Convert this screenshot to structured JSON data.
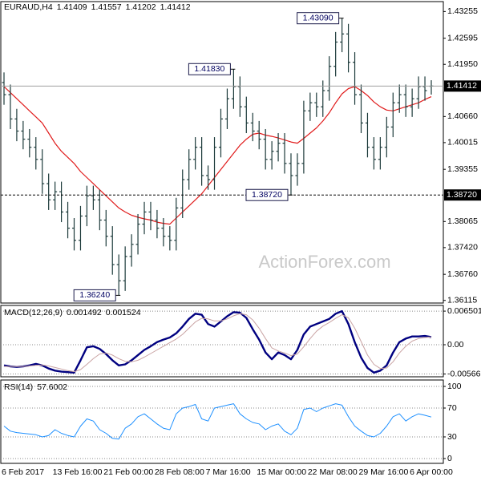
{
  "chart_data": [
    {
      "type": "ohlc",
      "title": "EURAUD,H4",
      "color": "#1c3a3a",
      "grid": false,
      "categories": [
        "6 Feb 2017",
        null,
        null,
        null,
        null,
        null,
        null,
        null,
        "13 Feb 16:00",
        null,
        null,
        null,
        null,
        null,
        null,
        null,
        "21 Feb 00:00",
        null,
        null,
        null,
        null,
        null,
        null,
        null,
        "28 Feb 08:00",
        null,
        null,
        null,
        null,
        null,
        null,
        null,
        "7 Mar 16:00",
        null,
        null,
        null,
        null,
        null,
        null,
        null,
        "15 Mar 00:00",
        null,
        null,
        null,
        null,
        null,
        null,
        null,
        "22 Mar 08:00",
        null,
        null,
        null,
        null,
        null,
        null,
        null,
        "29 Mar 16:00",
        null,
        null,
        null,
        null,
        null,
        null,
        null,
        "6 Apr 00:00",
        null,
        null,
        null
      ],
      "open": [
        1.415,
        1.412,
        1.406,
        1.403,
        1.401,
        1.399,
        1.396,
        1.39,
        1.386,
        1.388,
        1.383,
        1.379,
        1.376,
        1.382,
        1.387,
        1.386,
        1.381,
        1.377,
        1.37,
        1.366,
        1.372,
        1.375,
        1.38,
        1.383,
        1.381,
        1.379,
        1.377,
        1.376,
        1.384,
        1.391,
        1.396,
        1.399,
        1.392,
        1.391,
        1.399,
        1.406,
        1.411,
        1.414,
        1.409,
        1.405,
        1.403,
        1.401,
        1.396,
        1.398,
        1.4,
        1.395,
        1.392,
        1.395,
        1.408,
        1.41,
        1.409,
        1.413,
        1.419,
        1.425,
        1.427,
        1.42,
        1.412,
        1.405,
        1.399,
        1.396,
        1.399,
        1.404,
        1.41,
        1.412,
        1.409,
        1.411,
        1.414,
        1.41409
      ],
      "high": [
        1.4175,
        1.4145,
        1.4085,
        1.4055,
        1.4035,
        1.4015,
        1.3985,
        1.3925,
        1.3905,
        1.3905,
        1.3855,
        1.3815,
        1.3845,
        1.3895,
        1.3895,
        1.3885,
        1.3835,
        1.3795,
        1.3725,
        1.3745,
        1.3775,
        1.3825,
        1.3855,
        1.3855,
        1.3835,
        1.3815,
        1.3795,
        1.3865,
        1.3935,
        1.3985,
        1.4015,
        1.4015,
        1.3945,
        1.4015,
        1.4085,
        1.4135,
        1.4183,
        1.4165,
        1.4115,
        1.4075,
        1.4055,
        1.4035,
        1.4005,
        1.4025,
        1.4025,
        1.3975,
        1.3975,
        1.4105,
        1.4125,
        1.4125,
        1.4155,
        1.4215,
        1.4275,
        1.4309,
        1.4295,
        1.4225,
        1.4145,
        1.4075,
        1.4015,
        1.4015,
        1.4065,
        1.4125,
        1.4145,
        1.4145,
        1.4135,
        1.4165,
        1.4165,
        1.41557
      ],
      "low": [
        1.4095,
        1.4035,
        1.4005,
        1.3985,
        1.3965,
        1.3935,
        1.3875,
        1.3835,
        1.3835,
        1.3805,
        1.3765,
        1.3735,
        1.3735,
        1.3795,
        1.3835,
        1.3785,
        1.3745,
        1.3675,
        1.3624,
        1.3635,
        1.3695,
        1.3725,
        1.3775,
        1.3785,
        1.3765,
        1.3745,
        1.3735,
        1.3735,
        1.3815,
        1.3885,
        1.3935,
        1.3895,
        1.3885,
        1.3885,
        1.3965,
        1.4035,
        1.4085,
        1.4065,
        1.4025,
        1.4005,
        1.3985,
        1.3935,
        1.3935,
        1.3955,
        1.3925,
        1.3872,
        1.3895,
        1.3925,
        1.4055,
        1.4065,
        1.4065,
        1.4105,
        1.4165,
        1.4225,
        1.4175,
        1.4095,
        1.4025,
        1.3965,
        1.3935,
        1.3935,
        1.3965,
        1.4015,
        1.4075,
        1.4065,
        1.4065,
        1.4085,
        1.4105,
        1.41202
      ],
      "close": [
        1.412,
        1.406,
        1.403,
        1.401,
        1.399,
        1.396,
        1.39,
        1.386,
        1.388,
        1.383,
        1.379,
        1.376,
        1.382,
        1.387,
        1.386,
        1.381,
        1.377,
        1.37,
        1.366,
        1.372,
        1.375,
        1.38,
        1.383,
        1.381,
        1.379,
        1.377,
        1.376,
        1.384,
        1.391,
        1.396,
        1.399,
        1.392,
        1.391,
        1.399,
        1.406,
        1.411,
        1.414,
        1.409,
        1.405,
        1.403,
        1.401,
        1.396,
        1.398,
        1.4,
        1.395,
        1.392,
        1.395,
        1.408,
        1.41,
        1.409,
        1.413,
        1.419,
        1.425,
        1.427,
        1.42,
        1.412,
        1.405,
        1.399,
        1.396,
        1.399,
        1.404,
        1.41,
        1.412,
        1.409,
        1.411,
        1.414,
        1.413,
        1.41412
      ],
      "series": [
        {
          "color": "#e01b1b",
          "values": [
            1.414,
            1.4125,
            1.411,
            1.4095,
            1.408,
            1.4065,
            1.405,
            1.4025,
            1.4,
            1.398,
            1.3965,
            1.395,
            1.393,
            1.3915,
            1.39,
            1.3885,
            1.387,
            1.3855,
            1.384,
            1.383,
            1.3822,
            1.3817,
            1.3813,
            1.381,
            1.3805,
            1.3802,
            1.38,
            1.3815,
            1.383,
            1.3845,
            1.386,
            1.3875,
            1.3895,
            1.3915,
            1.3935,
            1.3955,
            1.3975,
            1.3995,
            1.401,
            1.4022,
            1.4025,
            1.402,
            1.4017,
            1.4013,
            1.4008,
            1.4003,
            1.4,
            1.4012,
            1.4025,
            1.4038,
            1.4055,
            1.4075,
            1.41,
            1.4122,
            1.4135,
            1.414,
            1.413,
            1.4118,
            1.4102,
            1.409,
            1.4082,
            1.408,
            1.4085,
            1.409,
            1.4095,
            1.41,
            1.4108,
            1.4115
          ]
        }
      ],
      "ylim": [
        1.3605,
        1.435
      ],
      "yticks": [
        1.43255,
        1.42595,
        {
          "value": 1.4195,
          "label": "1.41950"
        },
        {
          "value": 1.4066,
          "label": "1.40660"
        },
        1.40015,
        1.39355,
        1.38065,
        {
          "value": 1.3742,
          "label": "1.37420"
        },
        {
          "value": 1.3676,
          "label": "1.36760"
        },
        1.36115
      ],
      "annotations": [
        {
          "value": 1.4309,
          "label": "1.43090"
        },
        {
          "value": 1.4183,
          "label": "1.41830"
        },
        {
          "value": 1.3872,
          "label": "1.38720",
          "level": true
        },
        {
          "value": 1.3624,
          "label": "1.36240"
        }
      ]
    },
    {
      "type": "line",
      "title": "MACD(12,26,9)",
      "grid": true,
      "series": [
        {
          "color": "#000080",
          "width": 2.4,
          "values": [
            -0.004,
            -0.0042,
            -0.0043,
            -0.0042,
            -0.004,
            -0.0037,
            -0.004,
            -0.0046,
            -0.005,
            -0.0052,
            -0.0053,
            -0.0054,
            -0.003,
            -0.0005,
            -0.0003,
            -0.0008,
            -0.0018,
            -0.003,
            -0.004,
            -0.0038,
            -0.003,
            -0.002,
            -0.001,
            -0.0003,
            0.0005,
            0.001,
            0.0014,
            0.0022,
            0.0035,
            0.005,
            0.006,
            0.0058,
            0.004,
            0.0035,
            0.0045,
            0.0055,
            0.0063,
            0.0062,
            0.0052,
            0.003,
            0.001,
            -0.0015,
            -0.0028,
            -0.0015,
            -0.002,
            -0.0028,
            -0.001,
            0.002,
            0.0035,
            0.004,
            0.0045,
            0.005,
            0.006,
            0.0065,
            0.004,
            0.0005,
            -0.0025,
            -0.0045,
            -0.0054,
            -0.005,
            -0.004,
            -0.0015,
            0.0005,
            0.0012,
            0.0016,
            0.0016,
            0.0017,
            0.001492
          ]
        },
        {
          "color": "#c9a3a3",
          "width": 1,
          "values": [
            -0.0042,
            -0.0042,
            -0.0042,
            -0.0042,
            -0.0041,
            -0.004,
            -0.0039,
            -0.0041,
            -0.0044,
            -0.0047,
            -0.005,
            -0.0052,
            -0.0048,
            -0.0038,
            -0.0027,
            -0.0018,
            -0.0016,
            -0.002,
            -0.0027,
            -0.0032,
            -0.0033,
            -0.003,
            -0.0024,
            -0.0017,
            -0.001,
            -0.0003,
            0.0004,
            0.0011,
            0.002,
            0.0032,
            0.0044,
            0.0051,
            0.005,
            0.0046,
            0.0046,
            0.005,
            0.0056,
            0.006,
            0.0058,
            0.0048,
            0.0032,
            0.0012,
            -0.0006,
            -0.0012,
            -0.0016,
            -0.0021,
            -0.0018,
            -0.0004,
            0.0012,
            0.0026,
            0.0036,
            0.0043,
            0.0051,
            0.0058,
            0.0052,
            0.0032,
            0.0006,
            -0.002,
            -0.0038,
            -0.0046,
            -0.0045,
            -0.0033,
            -0.0016,
            -0.0003,
            0.0007,
            0.0012,
            0.0014,
            0.001524
          ]
        }
      ],
      "ylim": [
        -0.0062,
        0.0076
      ],
      "yticks": [
        0.006501,
        {
          "value": 0,
          "label": "0.00"
        },
        -0.005666
      ]
    },
    {
      "type": "line",
      "title": "RSI(14)",
      "grid": true,
      "series": [
        {
          "color": "#1e90ff",
          "width": 1,
          "values": [
            45,
            38,
            36,
            35,
            34,
            33,
            30,
            32,
            40,
            35,
            32,
            30,
            45,
            55,
            52,
            40,
            35,
            28,
            27,
            42,
            48,
            58,
            62,
            55,
            48,
            42,
            40,
            62,
            70,
            72,
            75,
            55,
            52,
            70,
            72,
            74,
            76,
            62,
            55,
            50,
            48,
            40,
            45,
            48,
            38,
            33,
            42,
            68,
            70,
            65,
            70,
            73,
            76,
            74,
            58,
            45,
            38,
            32,
            30,
            35,
            45,
            58,
            62,
            52,
            58,
            62,
            60,
            57.6002
          ]
        }
      ],
      "ylim": [
        -6.7,
        108.9
      ],
      "yticks": [
        100,
        70,
        30,
        0
      ]
    }
  ],
  "watermark": "ActionForex.com"
}
